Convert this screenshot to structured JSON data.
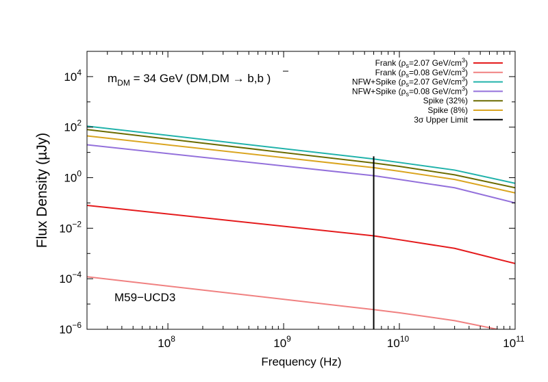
{
  "chart_data": {
    "type": "line",
    "title": "",
    "xlabel": "Frequency (Hz)",
    "ylabel": "Flux Density (µJy)",
    "xscale": "log",
    "yscale": "log",
    "xlim": [
      20000000.0,
      100000000000.0
    ],
    "ylim": [
      1e-06,
      100000.0
    ],
    "grid": false,
    "legend_position": "top-right",
    "x_ticks": [
      {
        "value": 100000000.0,
        "base": "10",
        "exp": "8"
      },
      {
        "value": 1000000000.0,
        "base": "10",
        "exp": "9"
      },
      {
        "value": 10000000000.0,
        "base": "10",
        "exp": "10"
      },
      {
        "value": 100000000000.0,
        "base": "10",
        "exp": "11"
      }
    ],
    "y_ticks": [
      {
        "value": 1e-06,
        "base": "10",
        "exp": "−6"
      },
      {
        "value": 0.0001,
        "base": "10",
        "exp": "−4"
      },
      {
        "value": 0.01,
        "base": "10",
        "exp": "−2"
      },
      {
        "value": 1.0,
        "base": "10",
        "exp": "0"
      },
      {
        "value": 100.0,
        "base": "10",
        "exp": "2"
      },
      {
        "value": 10000.0,
        "base": "10",
        "exp": "4"
      }
    ],
    "annotations": [
      {
        "id": "mass",
        "main": "m",
        "sub": "DM",
        "rest": " = 34 GeV (DM,DM → b,b )"
      },
      {
        "id": "object",
        "text": "M59−UCD3"
      }
    ],
    "series": [
      {
        "name": "Frank (ρs=2.07 GeV/cm3)",
        "label_parts": [
          "Frank (ρ",
          "s",
          "=2.07 GeV/cm",
          "3",
          ")"
        ],
        "color": "#e41a1c",
        "x": [
          20000000.0,
          6000000000.0,
          10000000000.0,
          30000000000.0,
          100000000000.0
        ],
        "y": [
          0.08,
          0.005,
          0.0035,
          0.0016,
          0.0004
        ]
      },
      {
        "name": "Frank (ρs=0.08 GeV/cm3)",
        "label_parts": [
          "Frank (ρ",
          "s",
          "=0.08 GeV/cm",
          "3",
          ")"
        ],
        "color": "#f08080",
        "x": [
          20000000.0,
          6000000000.0,
          10000000000.0,
          30000000000.0,
          70000000000.0
        ],
        "y": [
          0.00012,
          6e-06,
          4.5e-06,
          2.2e-06,
          1e-06
        ]
      },
      {
        "name": "NFW+Spike (ρs=2.07 GeV/cm3)",
        "label_parts": [
          "NFW+Spike (ρ",
          "s",
          "=2.07 GeV/cm",
          "3",
          ")"
        ],
        "color": "#20b2aa",
        "x": [
          20000000.0,
          6000000000.0,
          10000000000.0,
          30000000000.0,
          100000000000.0
        ],
        "y": [
          110,
          5.5,
          4,
          2,
          0.6
        ]
      },
      {
        "name": "NFW+Spike (ρs=0.08 GeV/cm3)",
        "label_parts": [
          "NFW+Spike (ρ",
          "s",
          "=0.08 GeV/cm",
          "3",
          ")"
        ],
        "color": "#9370db",
        "x": [
          20000000.0,
          6000000000.0,
          10000000000.0,
          30000000000.0,
          100000000000.0
        ],
        "y": [
          20,
          1.2,
          0.85,
          0.4,
          0.1
        ]
      },
      {
        "name": "Spike (32%)",
        "label_parts": [
          "Spike (32%)"
        ],
        "color": "#6b6b00",
        "x": [
          20000000.0,
          6000000000.0,
          10000000000.0,
          30000000000.0,
          100000000000.0
        ],
        "y": [
          80,
          3.8,
          2.8,
          1.3,
          0.4
        ]
      },
      {
        "name": "Spike (8%)",
        "label_parts": [
          "Spike (8%)"
        ],
        "color": "#daa520",
        "x": [
          20000000.0,
          6000000000.0,
          10000000000.0,
          30000000000.0,
          100000000000.0
        ],
        "y": [
          45,
          2.5,
          1.8,
          0.85,
          0.25
        ]
      },
      {
        "name": "3σ Upper Limit",
        "label_parts": [
          "3σ Upper Limit"
        ],
        "color": "#000000",
        "x": [
          6000000000.0,
          6000000000.0
        ],
        "y": [
          1e-06,
          7
        ]
      }
    ]
  }
}
